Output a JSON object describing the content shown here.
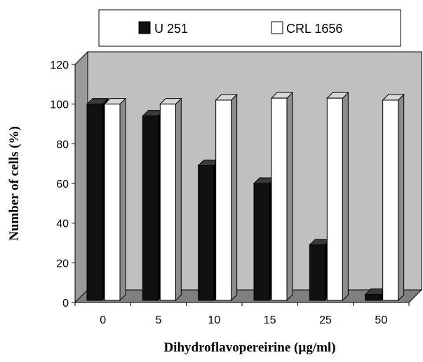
{
  "chart_data": {
    "type": "bar",
    "title": "",
    "xlabel": "Dihydroflavopereirine (µg/ml)",
    "ylabel": "Number of cells (%)",
    "categories": [
      "0",
      "5",
      "10",
      "15",
      "25",
      "50"
    ],
    "series": [
      {
        "name": "U 251",
        "values": [
          100,
          94,
          69,
          60,
          29,
          4
        ],
        "color": "#111111"
      },
      {
        "name": "CRL 1656",
        "values": [
          100,
          100,
          102,
          103,
          103,
          102
        ],
        "color": "#ffffff"
      }
    ],
    "ylim": [
      0,
      120
    ],
    "yticks": [
      0,
      20,
      40,
      60,
      80,
      100,
      120
    ],
    "grid": false,
    "legend_position": "top",
    "style": "3d",
    "colors": {
      "plot_background": "#c0c0c0",
      "floor": "#7f7f7f",
      "bar_outline": "#000000"
    }
  }
}
